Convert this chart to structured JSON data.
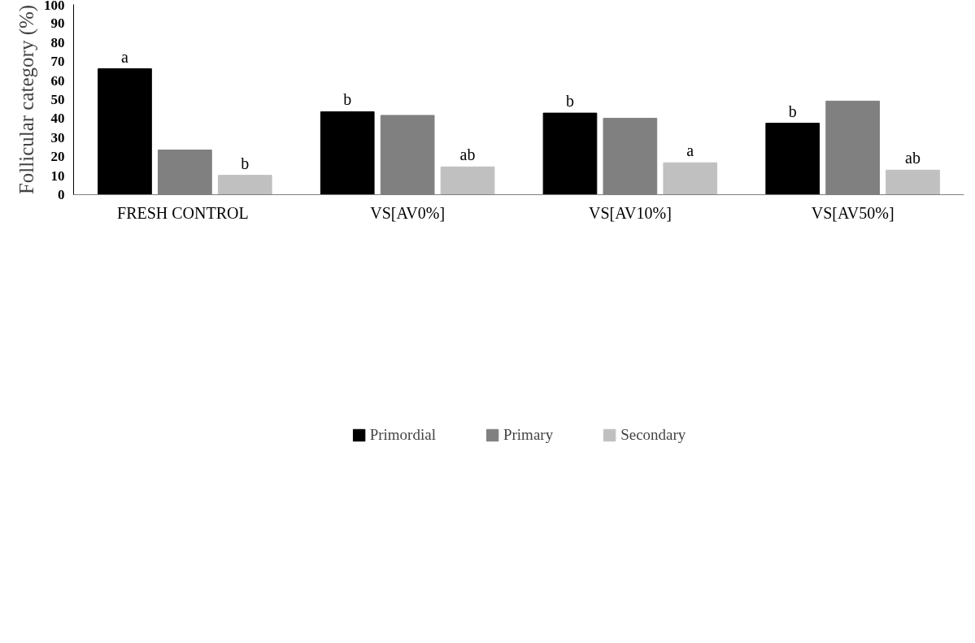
{
  "chart_data": {
    "type": "bar",
    "ylabel": "Follicular category (%)",
    "categories": [
      "FRESH  CONTROL",
      "VS[AV0%]",
      "VS[AV10%]",
      "VS[AV50%]"
    ],
    "series": [
      {
        "name": "Primordial",
        "color": "#000000",
        "values": [
          66.2,
          43.6,
          42.9,
          37.6
        ],
        "value_labels": [
          "a",
          "b",
          "b",
          "b"
        ]
      },
      {
        "name": "Primary",
        "color": "#808080",
        "values": [
          23.5,
          41.7,
          40.2,
          49.2
        ]
      },
      {
        "name": "Secondary",
        "color": "#c0c0c0",
        "values": [
          10.2,
          14.6,
          16.8,
          12.9
        ],
        "value_labels": [
          "b",
          "ab",
          "a",
          "ab"
        ]
      }
    ],
    "ylim": [
      0,
      100
    ],
    "yticks": [
      0,
      10,
      20,
      30,
      40,
      50,
      60,
      70,
      80,
      90,
      100
    ],
    "grid": false,
    "legend": "bottom"
  }
}
